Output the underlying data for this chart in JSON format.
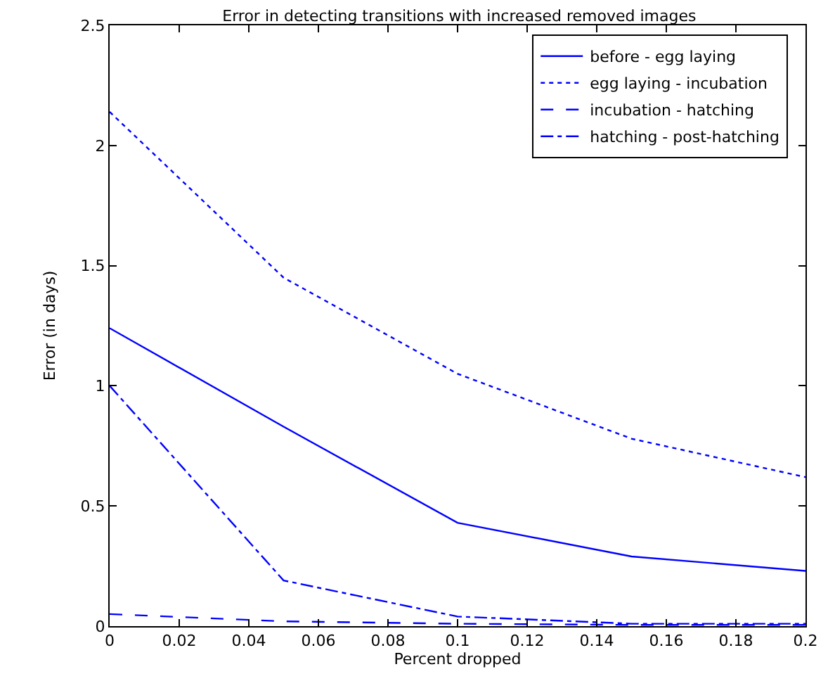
{
  "chart_data": {
    "type": "line",
    "title": "Error in detecting transitions with increased removed images",
    "xlabel": "Percent dropped",
    "ylabel": "Error (in days)",
    "x": [
      0,
      0.05,
      0.1,
      0.15,
      0.2
    ],
    "series": [
      {
        "name": "before - egg laying",
        "color": "#0000ff",
        "line_style": "solid",
        "values": [
          1.24,
          0.83,
          0.43,
          0.29,
          0.23
        ]
      },
      {
        "name": "egg laying - incubation",
        "color": "#0000ff",
        "line_style": "dotted",
        "values": [
          2.14,
          1.45,
          1.05,
          0.78,
          0.62
        ]
      },
      {
        "name": "incubation - hatching",
        "color": "#0000ff",
        "line_style": "dashed",
        "values": [
          0.05,
          0.02,
          0.01,
          0.005,
          0.005
        ]
      },
      {
        "name": "hatching - post-hatching",
        "color": "#0000ff",
        "line_style": "dashdot",
        "values": [
          1.0,
          0.19,
          0.04,
          0.01,
          0.01
        ]
      }
    ],
    "xlim": [
      0,
      0.2
    ],
    "xticks": [
      0,
      0.02,
      0.04,
      0.06,
      0.08,
      0.1,
      0.12,
      0.14,
      0.16,
      0.18,
      0.2
    ],
    "ylim": [
      0,
      2.5
    ],
    "yticks": [
      0,
      0.5,
      1,
      1.5,
      2,
      2.5
    ],
    "legend": "top right",
    "marker": "none"
  }
}
